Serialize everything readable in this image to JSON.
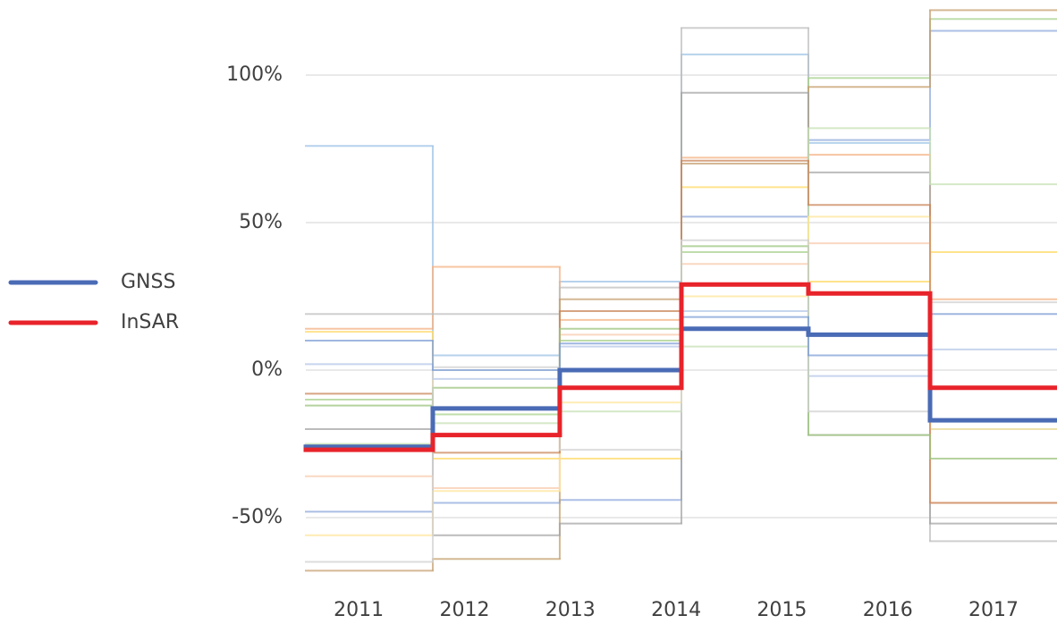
{
  "chart_data": {
    "type": "step",
    "xlim": [
      2010.5,
      2017.6
    ],
    "xticks": [
      2011,
      2012,
      2013,
      2014,
      2015,
      2016,
      2017
    ],
    "ylim": [
      -75,
      125
    ],
    "yticks": [
      {
        "value": -50,
        "label": "-50%"
      },
      {
        "value": 0,
        "label": "0%"
      },
      {
        "value": 50,
        "label": "50%"
      },
      {
        "value": 100,
        "label": "100%"
      }
    ],
    "grid": true,
    "legend": "left",
    "x": [
      2010.5,
      2011.7,
      2012.9,
      2014.05,
      2015.25,
      2016.4
    ],
    "background_series": [
      {
        "color": "#9dc3e6",
        "values": [
          76,
          5,
          30,
          107,
          77,
          -20
        ]
      },
      {
        "color": "#f4b183",
        "values": [
          14,
          35,
          17,
          72,
          73,
          24
        ]
      },
      {
        "color": "#bfbfbf",
        "values": [
          19,
          19,
          28,
          116,
          -22,
          -58
        ]
      },
      {
        "color": "#a9d18e",
        "values": [
          -10,
          -15,
          10,
          40,
          99,
          119
        ]
      },
      {
        "color": "#ffd966",
        "values": [
          13,
          -30,
          -30,
          62,
          30,
          40
        ]
      },
      {
        "color": "#8faadc",
        "values": [
          -48,
          -45,
          -44,
          52,
          78,
          115
        ]
      },
      {
        "color": "#c5a070",
        "values": [
          -68,
          -64,
          24,
          70,
          96,
          122
        ]
      },
      {
        "color": "#a5a5a5",
        "values": [
          -20,
          -56,
          -52,
          94,
          67,
          -52
        ]
      },
      {
        "color": "#f8cbad",
        "values": [
          -36,
          -40,
          12,
          36,
          43,
          -45
        ]
      },
      {
        "color": "#b4c7e7",
        "values": [
          2,
          -3,
          8,
          20,
          -2,
          7
        ]
      },
      {
        "color": "#c6e0b4",
        "values": [
          -25,
          -18,
          -14,
          8,
          82,
          63
        ]
      },
      {
        "color": "#ffe699",
        "values": [
          -56,
          -41,
          -11,
          25,
          52,
          -20
        ]
      },
      {
        "color": "#c9865a",
        "values": [
          -8,
          -28,
          20,
          71,
          56,
          -45
        ]
      },
      {
        "color": "#9cc47e",
        "values": [
          -12,
          -6,
          14,
          42,
          -22,
          -30
        ]
      },
      {
        "color": "#d0d0d0",
        "values": [
          -65,
          1,
          -27,
          44,
          -14,
          23
        ]
      },
      {
        "color": "#7f9fd6",
        "values": [
          10,
          0,
          9,
          18,
          5,
          19
        ]
      }
    ],
    "series": [
      {
        "name": "GNSS",
        "color": "#4a6bb5",
        "values": [
          -26,
          -13,
          0,
          14,
          12,
          -17
        ]
      },
      {
        "name": "InSAR",
        "color": "#e8232a",
        "values": [
          -27,
          -22,
          -6,
          29,
          26,
          -6
        ]
      }
    ]
  }
}
